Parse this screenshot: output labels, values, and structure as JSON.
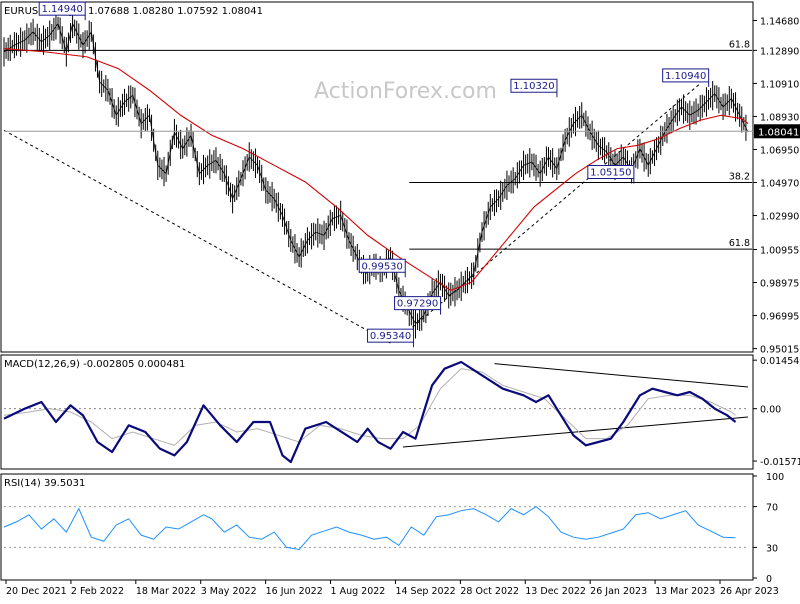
{
  "chart_data": [
    {
      "type": "candlestick",
      "title": "EURUSD,Daily",
      "ohlc_header": "1.07688 1.08280 1.07592 1.08041",
      "watermark": "ActionForex.com",
      "colors": {
        "price": "#000000",
        "ma": "#d40000",
        "trendline": "#000000"
      },
      "ylim": [
        0.9493,
        1.1543
      ],
      "y_ticks": [
        "1.14680",
        "1.12890",
        "1.10910",
        "1.08930",
        "1.06950",
        "1.04970",
        "1.02990",
        "1.00955",
        "0.98975",
        "0.96995",
        "0.95015"
      ],
      "current_price": "1.08041",
      "x_ticks": [
        "20 Dec 2021",
        "2 Feb 2022",
        "18 Mar 2022",
        "3 May 2022",
        "16 Jun 2022",
        "1 Aug 2022",
        "14 Sep 2022",
        "28 Oct 2022",
        "13 Dec 2022",
        "26 Jan 2023",
        "13 Mar 2023",
        "26 Apr 2023"
      ],
      "close_points": [
        [
          0,
          1.128
        ],
        [
          5,
          1.132
        ],
        [
          10,
          1.135
        ],
        [
          14,
          1.14
        ],
        [
          18,
          1.134
        ],
        [
          22,
          1.138
        ],
        [
          26,
          1.145
        ],
        [
          30,
          1.128
        ],
        [
          33,
          1.145
        ],
        [
          38,
          1.132
        ],
        [
          42,
          1.14
        ],
        [
          46,
          1.11
        ],
        [
          50,
          1.105
        ],
        [
          54,
          1.09
        ],
        [
          58,
          1.098
        ],
        [
          62,
          1.102
        ],
        [
          66,
          1.085
        ],
        [
          70,
          1.09
        ],
        [
          74,
          1.06
        ],
        [
          78,
          1.055
        ],
        [
          82,
          1.08
        ],
        [
          86,
          1.07
        ],
        [
          90,
          1.078
        ],
        [
          94,
          1.055
        ],
        [
          98,
          1.06
        ],
        [
          102,
          1.063
        ],
        [
          106,
          1.055
        ],
        [
          110,
          1.04
        ],
        [
          114,
          1.052
        ],
        [
          118,
          1.065
        ],
        [
          122,
          1.06
        ],
        [
          126,
          1.045
        ],
        [
          130,
          1.04
        ],
        [
          134,
          1.03
        ],
        [
          138,
          1.015
        ],
        [
          142,
          1.005
        ],
        [
          146,
          1.015
        ],
        [
          150,
          1.02
        ],
        [
          154,
          1.018
        ],
        [
          158,
          1.028
        ],
        [
          162,
          1.03
        ],
        [
          166,
          1.015
        ],
        [
          170,
          1.005
        ],
        [
          174,
          0.995
        ],
        [
          178,
          1.0
        ],
        [
          182,
          0.997
        ],
        [
          186,
          1.005
        ],
        [
          190,
          0.985
        ],
        [
          194,
          0.975
        ],
        [
          198,
          0.965
        ],
        [
          202,
          0.97
        ],
        [
          206,
          0.983
        ],
        [
          210,
          0.99
        ],
        [
          214,
          0.982
        ],
        [
          218,
          0.985
        ],
        [
          222,
          0.99
        ],
        [
          226,
          0.995
        ],
        [
          230,
          1.02
        ],
        [
          234,
          1.035
        ],
        [
          238,
          1.04
        ],
        [
          242,
          1.048
        ],
        [
          246,
          1.052
        ],
        [
          250,
          1.06
        ],
        [
          254,
          1.062
        ],
        [
          258,
          1.055
        ],
        [
          262,
          1.065
        ],
        [
          266,
          1.058
        ],
        [
          270,
          1.075
        ],
        [
          274,
          1.085
        ],
        [
          278,
          1.09
        ],
        [
          282,
          1.08
        ],
        [
          286,
          1.072
        ],
        [
          290,
          1.068
        ],
        [
          294,
          1.06
        ],
        [
          298,
          1.065
        ],
        [
          302,
          1.057
        ],
        [
          306,
          1.07
        ],
        [
          310,
          1.06
        ],
        [
          314,
          1.07
        ],
        [
          318,
          1.08
        ],
        [
          322,
          1.088
        ],
        [
          326,
          1.095
        ],
        [
          330,
          1.09
        ],
        [
          334,
          1.093
        ],
        [
          338,
          1.098
        ],
        [
          342,
          1.103
        ],
        [
          346,
          1.095
        ],
        [
          350,
          1.1
        ],
        [
          354,
          1.09
        ],
        [
          358,
          1.08
        ]
      ],
      "ma_points": [
        [
          0,
          1.13
        ],
        [
          20,
          1.128
        ],
        [
          40,
          1.125
        ],
        [
          55,
          1.118
        ],
        [
          70,
          1.105
        ],
        [
          85,
          1.09
        ],
        [
          100,
          1.078
        ],
        [
          115,
          1.07
        ],
        [
          130,
          1.06
        ],
        [
          145,
          1.05
        ],
        [
          160,
          1.035
        ],
        [
          175,
          1.018
        ],
        [
          190,
          1.005
        ],
        [
          205,
          0.993
        ],
        [
          215,
          0.985
        ],
        [
          225,
          0.99
        ],
        [
          235,
          1.005
        ],
        [
          245,
          1.02
        ],
        [
          255,
          1.035
        ],
        [
          265,
          1.045
        ],
        [
          275,
          1.055
        ],
        [
          285,
          1.063
        ],
        [
          295,
          1.07
        ],
        [
          305,
          1.072
        ],
        [
          315,
          1.076
        ],
        [
          325,
          1.082
        ],
        [
          335,
          1.087
        ],
        [
          345,
          1.09
        ],
        [
          355,
          1.088
        ],
        [
          358,
          1.085
        ]
      ],
      "markers": [
        {
          "label": "1.14940",
          "x": 28,
          "y": 1.1494
        },
        {
          "label": "1.10320",
          "x": 255,
          "y": 1.1032
        },
        {
          "label": "1.10940",
          "x": 328,
          "y": 1.1094
        },
        {
          "label": "1.05150",
          "x": 292,
          "y": 1.0515
        },
        {
          "label": "0.99530",
          "x": 182,
          "y": 0.9953
        },
        {
          "label": "0.97290",
          "x": 199,
          "y": 0.9729
        },
        {
          "label": "0.95340",
          "x": 186,
          "y": 0.9534
        }
      ],
      "fib_levels": [
        {
          "label": "61.8",
          "y": 1.1289,
          "start_x": 0
        },
        {
          "label": "38.2",
          "y": 1.0497,
          "start_x": 195
        },
        {
          "label": "61.8",
          "y": 1.0098,
          "start_x": 195
        }
      ],
      "trendlines": [
        {
          "x1": 0,
          "y1": 1.081,
          "x2": 186,
          "y2": 0.9534
        },
        {
          "x1": 190,
          "y1": 0.956,
          "x2": 335,
          "y2": 1.109
        }
      ]
    },
    {
      "type": "line",
      "title": "MACD(12,26,9) -0.002805 0.000481",
      "ylim": [
        -0.0175,
        0.0155
      ],
      "y_ticks": [
        "0.014549",
        "0.00",
        "-0.015712"
      ],
      "colors": {
        "macd": "#0a0a7a",
        "signal": "#b0b0b0"
      },
      "macd_points": [
        [
          0,
          -0.003
        ],
        [
          10,
          0.0
        ],
        [
          18,
          0.002
        ],
        [
          25,
          -0.004
        ],
        [
          32,
          0.001
        ],
        [
          38,
          -0.002
        ],
        [
          45,
          -0.01
        ],
        [
          52,
          -0.013
        ],
        [
          60,
          -0.005
        ],
        [
          68,
          -0.007
        ],
        [
          75,
          -0.012
        ],
        [
          82,
          -0.014
        ],
        [
          88,
          -0.01
        ],
        [
          96,
          0.001
        ],
        [
          104,
          -0.005
        ],
        [
          112,
          -0.01
        ],
        [
          120,
          -0.004
        ],
        [
          128,
          -0.004
        ],
        [
          134,
          -0.014
        ],
        [
          138,
          -0.016
        ],
        [
          145,
          -0.006
        ],
        [
          155,
          -0.004
        ],
        [
          160,
          -0.006
        ],
        [
          165,
          -0.008
        ],
        [
          170,
          -0.01
        ],
        [
          175,
          -0.006
        ],
        [
          180,
          -0.01
        ],
        [
          186,
          -0.012
        ],
        [
          192,
          -0.007
        ],
        [
          198,
          -0.009
        ],
        [
          202,
          -0.001
        ],
        [
          206,
          0.007
        ],
        [
          212,
          0.012
        ],
        [
          220,
          0.014
        ],
        [
          230,
          0.01
        ],
        [
          240,
          0.006
        ],
        [
          250,
          0.004
        ],
        [
          256,
          0.002
        ],
        [
          262,
          0.004
        ],
        [
          268,
          -0.002
        ],
        [
          274,
          -0.008
        ],
        [
          280,
          -0.011
        ],
        [
          286,
          -0.01
        ],
        [
          292,
          -0.009
        ],
        [
          298,
          -0.004
        ],
        [
          306,
          0.004
        ],
        [
          312,
          0.006
        ],
        [
          318,
          0.005
        ],
        [
          324,
          0.004
        ],
        [
          330,
          0.005
        ],
        [
          336,
          0.003
        ],
        [
          342,
          0.0
        ],
        [
          348,
          -0.002
        ],
        [
          352,
          -0.004
        ]
      ],
      "signal_points": [
        [
          0,
          -0.002
        ],
        [
          12,
          -0.001
        ],
        [
          22,
          0.0
        ],
        [
          32,
          -0.001
        ],
        [
          42,
          -0.004
        ],
        [
          52,
          -0.009
        ],
        [
          62,
          -0.007
        ],
        [
          72,
          -0.009
        ],
        [
          82,
          -0.011
        ],
        [
          92,
          -0.005
        ],
        [
          102,
          -0.004
        ],
        [
          112,
          -0.007
        ],
        [
          122,
          -0.006
        ],
        [
          132,
          -0.008
        ],
        [
          142,
          -0.01
        ],
        [
          152,
          -0.005
        ],
        [
          162,
          -0.006
        ],
        [
          172,
          -0.008
        ],
        [
          182,
          -0.009
        ],
        [
          192,
          -0.009
        ],
        [
          200,
          -0.005
        ],
        [
          210,
          0.006
        ],
        [
          220,
          0.012
        ],
        [
          230,
          0.011
        ],
        [
          240,
          0.007
        ],
        [
          250,
          0.005
        ],
        [
          260,
          0.003
        ],
        [
          270,
          -0.003
        ],
        [
          280,
          -0.009
        ],
        [
          290,
          -0.009
        ],
        [
          300,
          -0.005
        ],
        [
          310,
          0.003
        ],
        [
          320,
          0.004
        ],
        [
          330,
          0.004
        ],
        [
          340,
          0.002
        ],
        [
          350,
          -0.001
        ],
        [
          352,
          -0.002
        ]
      ],
      "trendlines": [
        {
          "x1": 236,
          "y1": 0.0135,
          "x2": 358,
          "y2": 0.0065
        },
        {
          "x1": 192,
          "y1": -0.0115,
          "x2": 358,
          "y2": -0.0025
        }
      ]
    },
    {
      "type": "line",
      "title": "RSI(14) 39.5031",
      "ylim": [
        0,
        100
      ],
      "y_ticks": [
        "100",
        "70",
        "30",
        "0"
      ],
      "levels": [
        70,
        30
      ],
      "colors": {
        "rsi": "#1e90ff"
      },
      "rsi_points": [
        [
          0,
          50
        ],
        [
          6,
          55
        ],
        [
          12,
          62
        ],
        [
          18,
          48
        ],
        [
          24,
          58
        ],
        [
          30,
          45
        ],
        [
          36,
          68
        ],
        [
          42,
          40
        ],
        [
          48,
          36
        ],
        [
          54,
          52
        ],
        [
          60,
          58
        ],
        [
          66,
          42
        ],
        [
          72,
          38
        ],
        [
          78,
          50
        ],
        [
          84,
          48
        ],
        [
          90,
          55
        ],
        [
          96,
          62
        ],
        [
          100,
          58
        ],
        [
          106,
          45
        ],
        [
          112,
          52
        ],
        [
          118,
          40
        ],
        [
          124,
          38
        ],
        [
          130,
          45
        ],
        [
          136,
          30
        ],
        [
          142,
          28
        ],
        [
          148,
          42
        ],
        [
          154,
          46
        ],
        [
          160,
          50
        ],
        [
          166,
          45
        ],
        [
          172,
          42
        ],
        [
          178,
          38
        ],
        [
          184,
          40
        ],
        [
          190,
          32
        ],
        [
          196,
          50
        ],
        [
          202,
          42
        ],
        [
          208,
          60
        ],
        [
          214,
          62
        ],
        [
          220,
          66
        ],
        [
          226,
          68
        ],
        [
          232,
          62
        ],
        [
          238,
          55
        ],
        [
          244,
          68
        ],
        [
          250,
          62
        ],
        [
          256,
          70
        ],
        [
          262,
          60
        ],
        [
          268,
          45
        ],
        [
          274,
          40
        ],
        [
          280,
          38
        ],
        [
          286,
          40
        ],
        [
          292,
          44
        ],
        [
          298,
          48
        ],
        [
          304,
          62
        ],
        [
          310,
          64
        ],
        [
          316,
          58
        ],
        [
          322,
          62
        ],
        [
          328,
          66
        ],
        [
          334,
          52
        ],
        [
          340,
          46
        ],
        [
          346,
          40
        ],
        [
          352,
          39.5
        ]
      ]
    }
  ]
}
